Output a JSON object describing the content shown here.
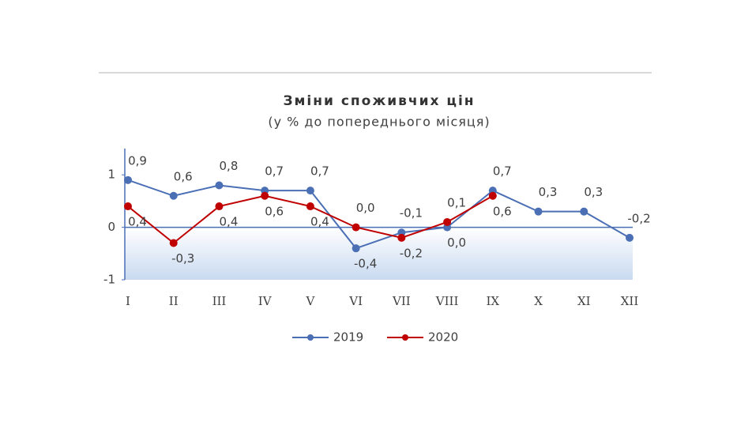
{
  "chart_data": {
    "type": "line",
    "title": "Зміни споживчих цін",
    "subtitle": "(у % до попереднього місяця)",
    "categories": [
      "I",
      "II",
      "III",
      "IV",
      "V",
      "VI",
      "VII",
      "VIII",
      "IX",
      "X",
      "XI",
      "XII"
    ],
    "series": [
      {
        "name": "2019",
        "color": "#4a6fb5",
        "values": [
          0.9,
          0.6,
          0.8,
          0.7,
          0.7,
          -0.4,
          -0.1,
          0.0,
          0.7,
          0.3,
          0.3,
          -0.2
        ],
        "value_labels": [
          "0,9",
          "0,6",
          "0,8",
          "0,7",
          "0,7",
          "-0,4",
          "-0,1",
          "0,0",
          "0,7",
          "0,3",
          "0,3",
          "-0,2"
        ]
      },
      {
        "name": "2020",
        "color": "#c00000",
        "values": [
          0.4,
          -0.3,
          0.4,
          0.6,
          0.4,
          0.0,
          -0.2,
          0.1,
          0.6,
          null,
          null,
          null
        ],
        "value_labels": [
          "0,4",
          "-0,3",
          "0,4",
          "0,6",
          "0,4",
          "0,0",
          "-0,2",
          "0,1",
          "0,6",
          null,
          null,
          null
        ]
      }
    ],
    "ylim": [
      -1,
      1.5
    ],
    "yticks": [
      -1,
      0,
      1
    ]
  }
}
